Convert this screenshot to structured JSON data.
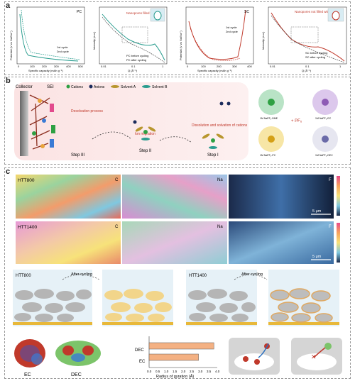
{
  "panel_a": {
    "label": "a",
    "plot1": {
      "tag": "PC",
      "ylabel": "Potential (V vs Na/Na⁺)",
      "xlabel": "Specific capacity (mAh g⁻¹)",
      "xticks": [
        "0",
        "100",
        "200",
        "300",
        "400",
        "500"
      ],
      "legend": [
        "1st cycle",
        "2nd cycle"
      ]
    },
    "plot2": {
      "annotation": "Nanopores filled with SEI",
      "ylabel": "Intensity (a.u.)",
      "xlabel": "Q (Å⁻¹)",
      "xticks": [
        "0.01",
        "0.1",
        "1"
      ],
      "legend": [
        "PC before cycling",
        "PC after cycling"
      ]
    },
    "plot3": {
      "tag": "SC",
      "ylabel": "Potential (V vs Na/Na⁺)",
      "xlabel": "Specific capacity (mAh g⁻¹)",
      "xticks": [
        "0",
        "100",
        "200",
        "300",
        "400"
      ],
      "legend": [
        "1st cycle",
        "2nd cycle"
      ]
    },
    "plot4": {
      "annotation": "Nanopores not filled with SEI",
      "ylabel": "Intensity (a.u.)",
      "xlabel": "Q (Å⁻¹)",
      "xticks": [
        "0.01",
        "0.1",
        "1"
      ],
      "legend": [
        "SC before cycling",
        "SC after cycling"
      ]
    }
  },
  "panel_b": {
    "label": "b",
    "collector": "Collector",
    "sei": "SEI",
    "legend": [
      "Cations",
      "Anions",
      "Solvent A",
      "Solvent B"
    ],
    "desolvation": "Desolvation process",
    "ion_migration": "Ion migration",
    "dissolution": "Dissolution and solvation of cations",
    "steps": [
      "Step III",
      "Step II",
      "Step I"
    ],
    "complex_labels": [
      "1M NaPF₆-DME",
      "1M NaPF₆-EC",
      "1M NaPF₆-PC",
      "1M NaPF₆-DEC"
    ],
    "plus_pf6": "+ PF₆"
  },
  "panel_c": {
    "label": "c",
    "row1": {
      "sample": "HTT800",
      "maps": [
        "C",
        "Na",
        "F"
      ],
      "scalebar": "5 μm"
    },
    "row2": {
      "sample": "HTT1400",
      "maps": [
        "C",
        "Na",
        "F"
      ],
      "scalebar": "5 μm"
    },
    "schematic": {
      "left": "HTT800",
      "right": "HTT1400",
      "after": "After cycling"
    },
    "molecules": [
      "EC",
      "DEC"
    ],
    "bar_chart": {
      "type": "bar",
      "categories": [
        "DEC",
        "EC"
      ],
      "values": [
        3.8,
        2.9
      ],
      "xlabel": "Radius of gyration (Å)",
      "xticks": [
        "0.0",
        "0.5",
        "1.0",
        "1.5",
        "2.0",
        "2.5",
        "3.0",
        "3.5",
        "4.0"
      ],
      "xlim": [
        0,
        4
      ]
    }
  },
  "chart_data": {
    "type": "bar",
    "categories": [
      "DEC",
      "EC"
    ],
    "values": [
      3.8,
      2.9
    ],
    "xlabel": "Radius of gyration (Å)",
    "xlim": [
      0,
      4
    ]
  },
  "colors": {
    "accent": "#c0392b",
    "teal": "#2a9d8f",
    "bar": "#f4b183"
  }
}
